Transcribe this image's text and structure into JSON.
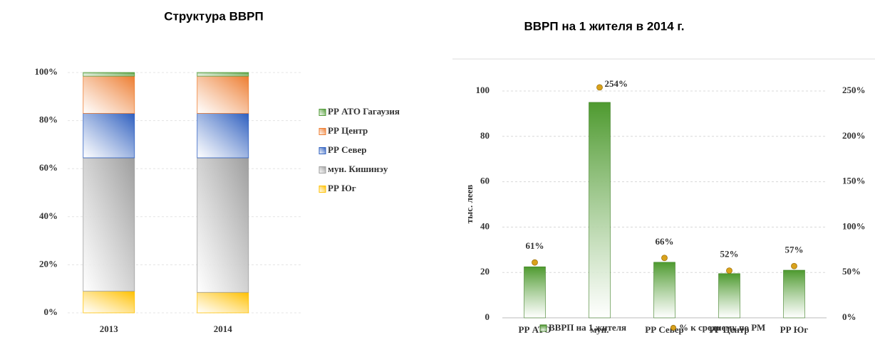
{
  "chart_data": [
    {
      "type": "stacked_bar",
      "title": "Структура ВВРП",
      "categories": [
        "2013",
        "2014"
      ],
      "series": [
        {
          "name": "РР Юг",
          "color": "#ffc000",
          "values": [
            9,
            8.5
          ]
        },
        {
          "name": "мун. Кишинэу",
          "color": "#9e9e9e",
          "values": [
            55.5,
            56
          ]
        },
        {
          "name": "РР Север",
          "color": "#2e5fbf",
          "values": [
            18.5,
            18.5
          ]
        },
        {
          "name": "РР Центр",
          "color": "#ed7d31",
          "values": [
            15.5,
            15.5
          ]
        },
        {
          "name": "РР АТО Гагаузия",
          "color": "#4f9a35",
          "values": [
            1.5,
            1.5
          ]
        }
      ],
      "ylim": [
        0,
        100
      ],
      "yticks": [
        {
          "value": 0,
          "label": "0%"
        },
        {
          "value": 20,
          "label": "20%"
        },
        {
          "value": 40,
          "label": "40%"
        },
        {
          "value": 60,
          "label": "60%"
        },
        {
          "value": 80,
          "label": "80%"
        },
        {
          "value": 100,
          "label": "100%"
        }
      ],
      "grid": true,
      "legend": "right"
    },
    {
      "type": "bar_dot",
      "title": "ВВРП на 1 жителя в 2014 г.",
      "y_label": "тыс. леев",
      "categories": [
        "РР АТО Гагаузия",
        "мун. Кишинэу",
        "РР Север",
        "РР Центр",
        "РР Юг"
      ],
      "series": [
        {
          "name": "ВВРП на 1 жителя",
          "color": "#4e9a2f",
          "values": [
            22.5,
            95,
            24.5,
            19.5,
            21
          ]
        },
        {
          "name": "% к среднему по РМ",
          "color": "#d9a21b",
          "axis": "y2",
          "values": [
            61,
            254,
            66,
            52,
            57
          ],
          "value_labels": [
            "61%",
            "254%",
            "66%",
            "52%",
            "57%"
          ]
        }
      ],
      "ylim": [
        0,
        100
      ],
      "yticks": [
        0,
        20,
        40,
        60,
        80,
        100
      ],
      "y2lim": [
        0,
        250
      ],
      "y2ticks": [
        {
          "value": 0,
          "label": "0%"
        },
        {
          "value": 50,
          "label": "50%"
        },
        {
          "value": 100,
          "label": "100%"
        },
        {
          "value": 150,
          "label": "150%"
        },
        {
          "value": 200,
          "label": "200%"
        },
        {
          "value": 250,
          "label": "250%"
        }
      ],
      "grid": true,
      "legend": "bottom"
    }
  ]
}
